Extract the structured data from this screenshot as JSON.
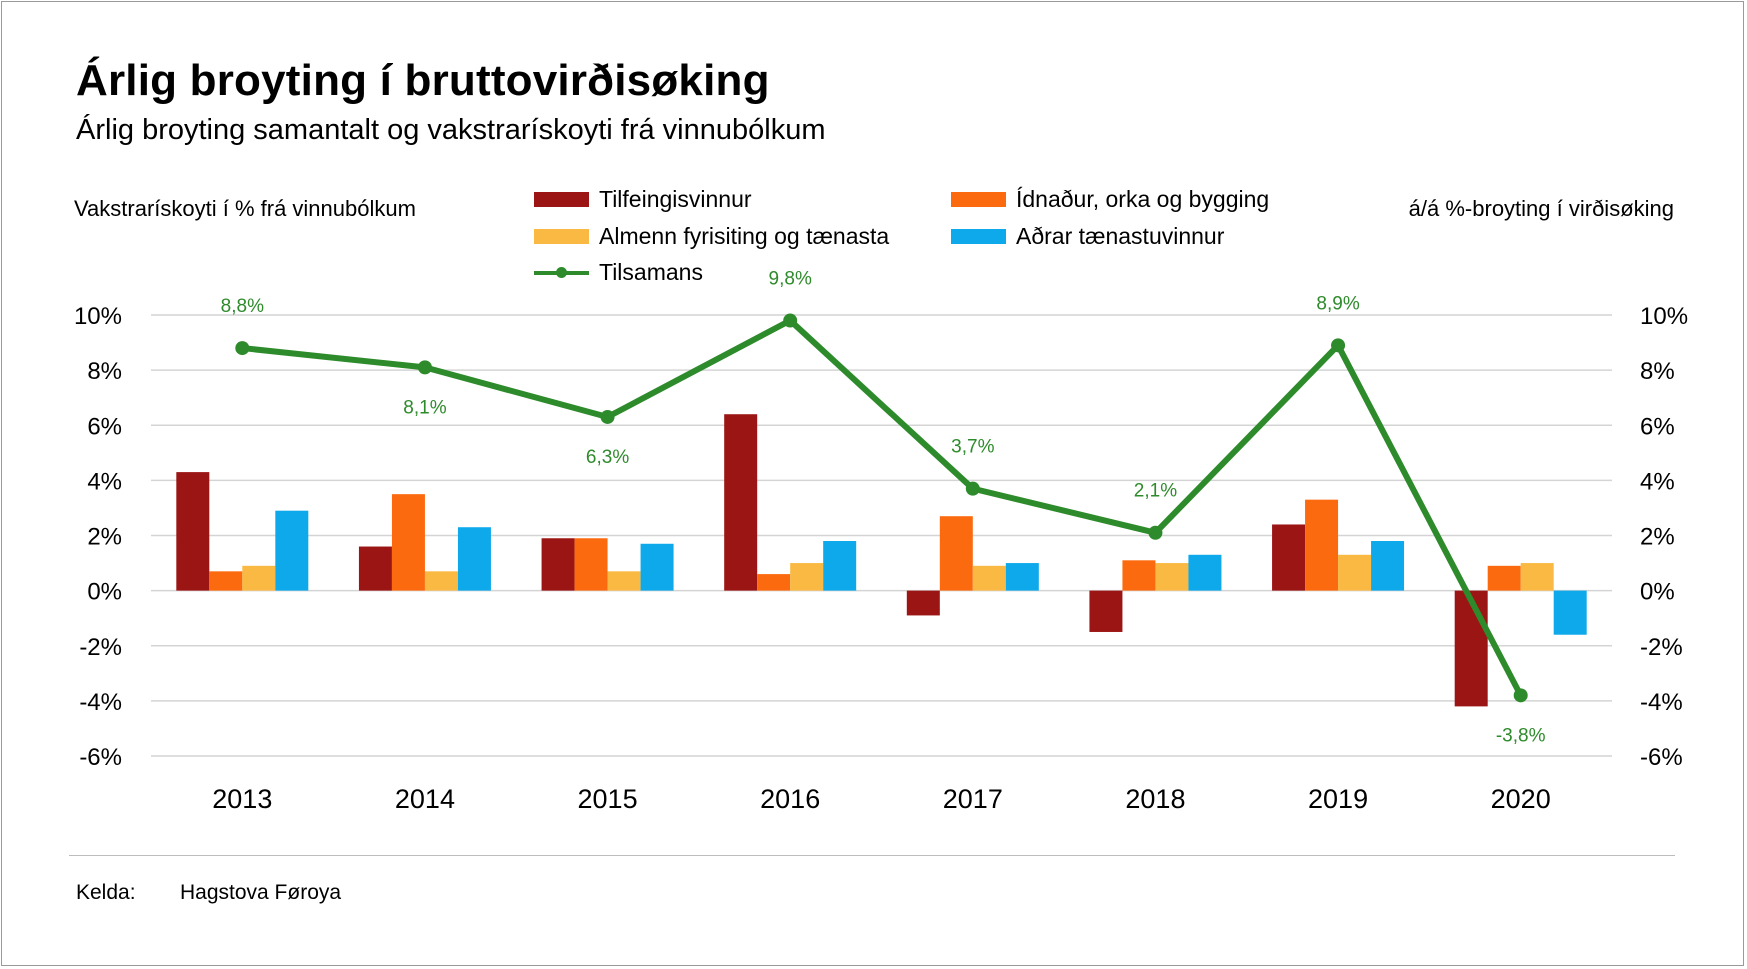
{
  "title": "Árlig broyting í bruttovirðisøking",
  "subtitle": "Árlig broyting samantalt og vakstrarískoyti frá vinnubólkum",
  "axis_captions": {
    "left": "Vakstrarískoyti í % frá vinnubólkum",
    "right": "á/á %-broyting í virðisøking"
  },
  "source": {
    "label": "Kelda:",
    "value": "Hagstova Føroya"
  },
  "colors": {
    "tilfeingisvinnur": "#9b1515",
    "idnadur": "#fc6a0f",
    "almenn": "#f9b942",
    "adrar": "#0ea9ea",
    "tilsamans": "#2e8b2b",
    "grid": "#d4d4d4"
  },
  "chart_data": {
    "type": "bar",
    "title": "Árlig broyting í bruttovirðisøking",
    "categories": [
      "2013",
      "2014",
      "2015",
      "2016",
      "2017",
      "2018",
      "2019",
      "2020"
    ],
    "ylim": [
      -6,
      10
    ],
    "yticks": [
      "10%",
      "8%",
      "6%",
      "4%",
      "2%",
      "0%",
      "-2%",
      "-4%",
      "-6%"
    ],
    "ytick_values": [
      10,
      8,
      6,
      4,
      2,
      0,
      -2,
      -4,
      -6
    ],
    "ylabel_left": "Vakstrarískoyti í % frá vinnubólkum",
    "ylabel_right": "á/á %-broyting í virðisøking",
    "grid": true,
    "series": [
      {
        "name": "Tilfeingisvinnur",
        "type": "bar",
        "color_key": "tilfeingisvinnur",
        "values": [
          4.3,
          1.6,
          1.9,
          6.4,
          -0.9,
          -1.5,
          2.4,
          -4.2
        ]
      },
      {
        "name": "Ídnaður, orka og bygging",
        "type": "bar",
        "color_key": "idnadur",
        "values": [
          0.7,
          3.5,
          1.9,
          0.6,
          2.7,
          1.1,
          3.3,
          0.9
        ]
      },
      {
        "name": "Almenn fyrisiting og tænasta",
        "type": "bar",
        "color_key": "almenn",
        "values": [
          0.9,
          0.7,
          0.7,
          1.0,
          0.9,
          1.0,
          1.3,
          1.0
        ]
      },
      {
        "name": "Aðrar tænastuvinnur",
        "type": "bar",
        "color_key": "adrar",
        "values": [
          2.9,
          2.3,
          1.7,
          1.8,
          1.0,
          1.3,
          1.8,
          -1.6
        ]
      },
      {
        "name": "Tilsamans",
        "type": "line",
        "color_key": "tilsamans",
        "values": [
          8.8,
          8.1,
          6.3,
          9.8,
          3.7,
          2.1,
          8.9,
          -3.8
        ],
        "labels": [
          "8,8%",
          "8,1%",
          "6,3%",
          "9,8%",
          "3,7%",
          "2,1%",
          "8,9%",
          "-3,8%"
        ],
        "label_positions": [
          "above",
          "below",
          "below",
          "above",
          "above",
          "above",
          "above",
          "below"
        ]
      }
    ]
  }
}
